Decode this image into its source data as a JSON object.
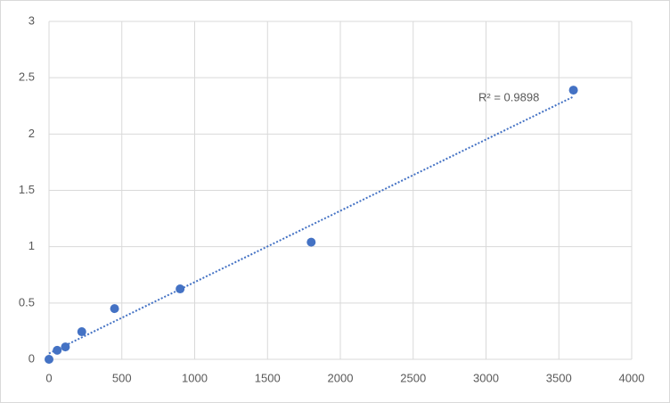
{
  "chart_data": {
    "type": "scatter",
    "x": [
      0,
      56.25,
      112.5,
      225,
      450,
      900,
      1800,
      3600
    ],
    "values": [
      0,
      0.08,
      0.11,
      0.245,
      0.45,
      0.625,
      1.04,
      2.39
    ],
    "color": "#4472c4",
    "trendline": "linear",
    "annotation": "R² = 0.9898",
    "xlim": [
      0,
      4000
    ],
    "xticks": [
      0,
      500,
      1000,
      1500,
      2000,
      2500,
      3000,
      3500,
      4000
    ],
    "ylim": [
      0,
      3
    ],
    "yticks": [
      0,
      0.5,
      1,
      1.5,
      2,
      2.5,
      3
    ],
    "grid": true
  }
}
